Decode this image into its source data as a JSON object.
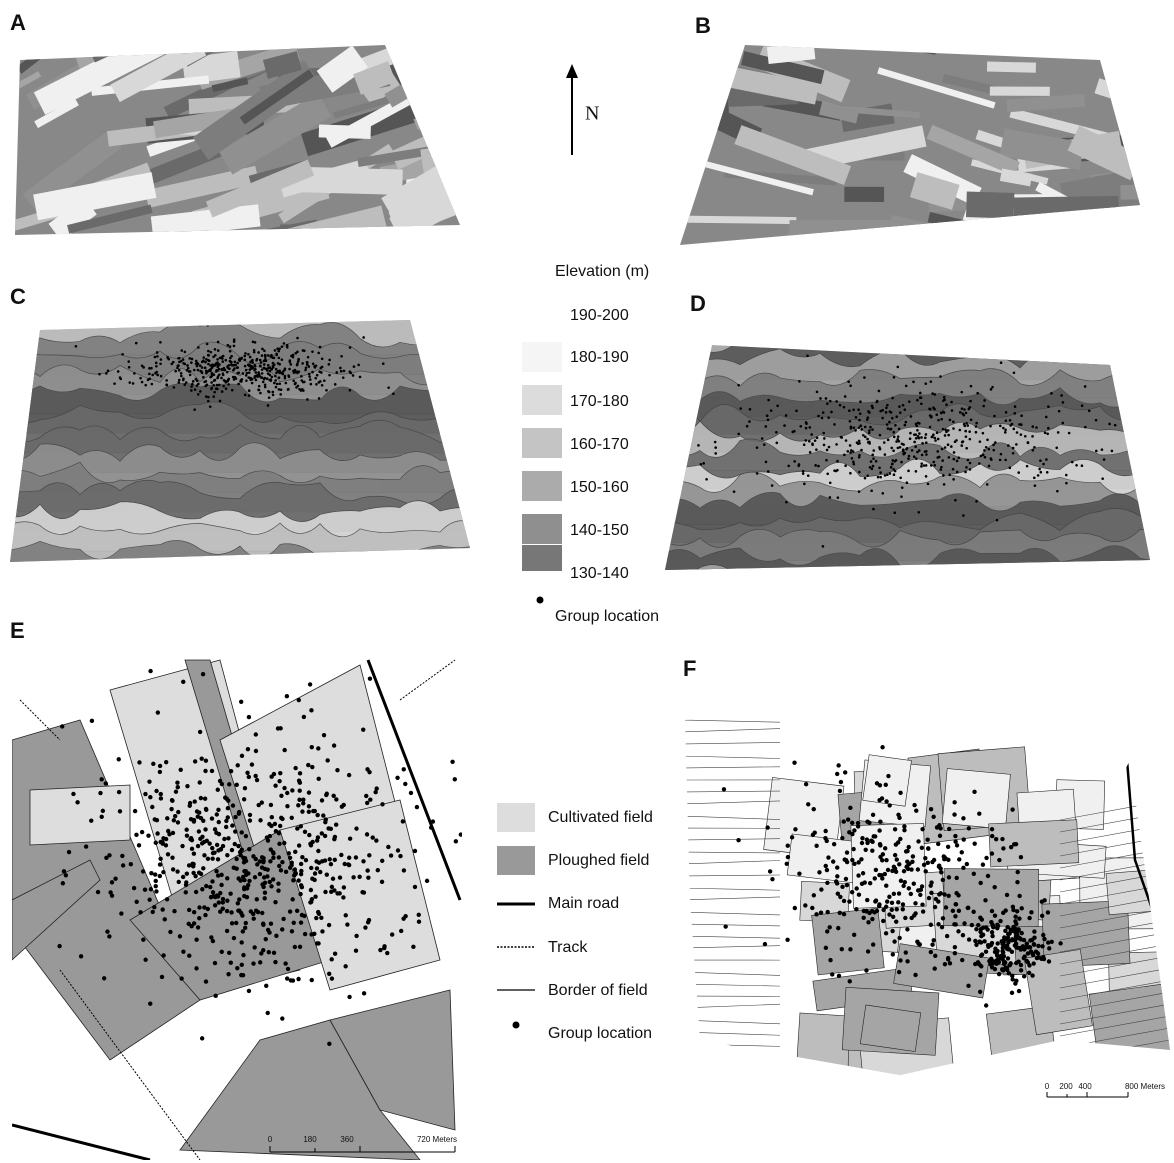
{
  "panels": [
    {
      "label": "A"
    },
    {
      "label": "B"
    },
    {
      "label": "C"
    },
    {
      "label": "D"
    },
    {
      "label": "E"
    },
    {
      "label": "F"
    }
  ],
  "north": "N",
  "elevation_legend": {
    "title": "Elevation (m)",
    "classes": [
      "190-200",
      "180-190",
      "170-180",
      "160-170",
      "150-160",
      "140-150",
      "130-140"
    ],
    "point": "Group location"
  },
  "field_legend": {
    "items": [
      "Cultivated field",
      "Ploughed field",
      "Main road",
      "Track",
      "Border of field",
      "Group location"
    ]
  },
  "scale_bars": [
    {
      "ticks": [
        "0",
        "180",
        "360",
        "720 Meters"
      ]
    },
    {
      "ticks": [
        "0",
        "200",
        "400",
        "800 Meters"
      ]
    }
  ]
}
